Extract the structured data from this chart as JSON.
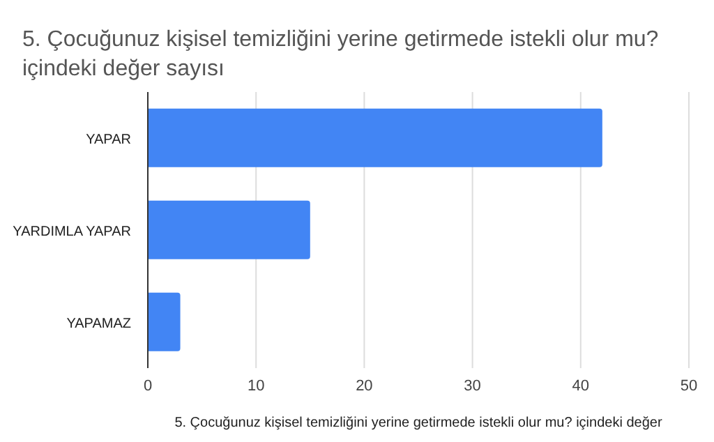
{
  "chart_data": {
    "type": "bar",
    "orientation": "horizontal",
    "title": "5. Çocuğunuz kişisel temizliğini yerine getirmede istekli olur mu? içindeki değer sayısı",
    "xlabel": "5. Çocuğunuz kişisel temizliğini yerine getirmede istekli olur mu? içindeki değer",
    "categories": [
      "YAPAR",
      "YARDIMLA YAPAR",
      "YAPAMAZ"
    ],
    "values": [
      42,
      15,
      3
    ],
    "color": "#4285f4",
    "xlim": [
      0,
      50
    ],
    "xticks": [
      0,
      10,
      20,
      30,
      40,
      50
    ],
    "grid": "x"
  }
}
